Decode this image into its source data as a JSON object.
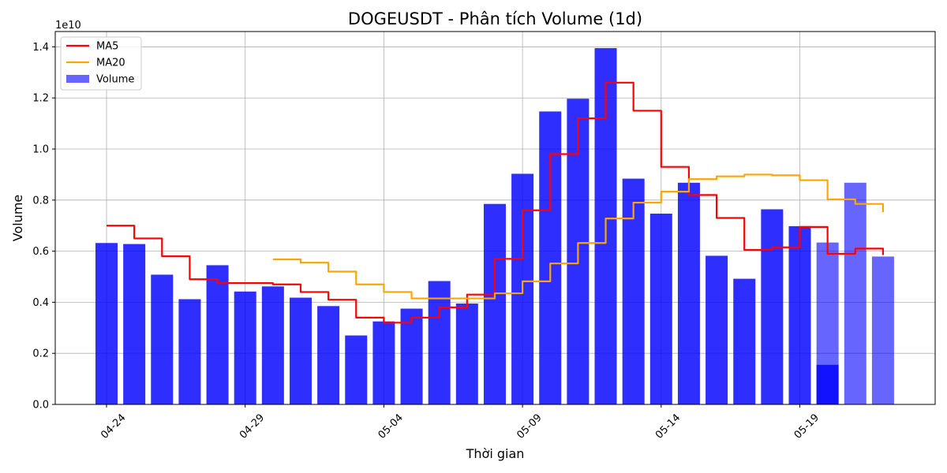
{
  "chart_data": {
    "type": "bar",
    "title": "DOGEUSDT - Phân tích Volume (1d)",
    "xlabel": "Thời gian",
    "ylabel": "Volume",
    "y_scale_label": "1e10",
    "ylim": [
      0,
      1.46
    ],
    "y_ticks": [
      "0.0",
      "0.2",
      "0.4",
      "0.6",
      "0.8",
      "1.0",
      "1.2",
      "1.4"
    ],
    "x_ticks": [
      "04-24",
      "04-29",
      "05-04",
      "05-09",
      "05-14",
      "05-19"
    ],
    "grid": true,
    "legend_position": "top-left",
    "categories": [
      "04-24",
      "04-25",
      "04-26",
      "04-27",
      "04-28",
      "04-29",
      "04-30",
      "05-01",
      "05-02",
      "05-03",
      "05-04",
      "05-05",
      "05-06",
      "05-07",
      "05-08",
      "05-09",
      "05-10",
      "05-11",
      "05-12",
      "05-13",
      "05-14",
      "05-15",
      "05-16",
      "05-17",
      "05-18",
      "05-19",
      "05-20",
      "05-21",
      "05-22"
    ],
    "series": [
      {
        "name": "Volume",
        "kind": "bar",
        "color": "#0000ff",
        "values": [
          0.632,
          0.628,
          0.508,
          0.412,
          0.545,
          0.442,
          0.462,
          0.418,
          0.385,
          0.27,
          0.325,
          0.375,
          0.483,
          0.395,
          0.785,
          0.903,
          1.147,
          1.197,
          1.395,
          0.884,
          0.747,
          0.868,
          0.582,
          0.492,
          0.764,
          0.698,
          0.634,
          0.868,
          0.579
        ],
        "overlays": [
          {
            "category": "05-20",
            "value": 0.155,
            "color": "#0000ff"
          }
        ],
        "faded_from_index": 26
      },
      {
        "name": "MA5",
        "kind": "line",
        "color": "#ff0000",
        "values": [
          0.7,
          0.65,
          0.58,
          0.49,
          0.475,
          0.475,
          0.47,
          0.44,
          0.41,
          0.34,
          0.32,
          0.34,
          0.38,
          0.43,
          0.57,
          0.76,
          0.98,
          1.12,
          1.26,
          1.15,
          0.93,
          0.82,
          0.73,
          0.605,
          0.615,
          0.695,
          0.59,
          0.61,
          0.585
        ]
      },
      {
        "name": "MA20",
        "kind": "line",
        "color": "#ffa500",
        "values": [
          null,
          null,
          null,
          null,
          null,
          null,
          0.568,
          0.555,
          0.52,
          0.47,
          0.44,
          0.415,
          0.415,
          0.415,
          0.435,
          0.482,
          0.552,
          0.632,
          0.728,
          0.79,
          0.833,
          0.882,
          0.893,
          0.9,
          0.897,
          0.878,
          0.803,
          0.785,
          0.753
        ]
      }
    ]
  }
}
